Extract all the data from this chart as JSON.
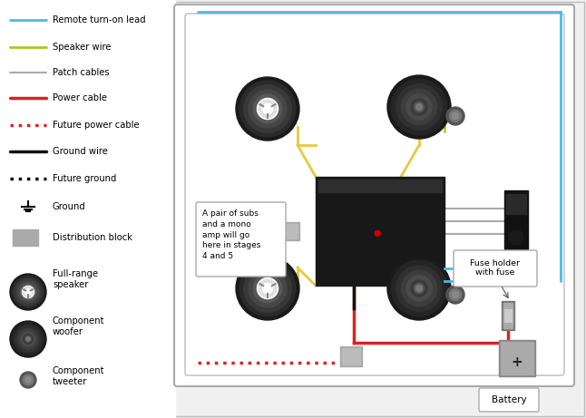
{
  "bg_color": "#f0f0f0",
  "diagram_bg": "#ffffff",
  "blue": "#4db8e8",
  "yellow": "#e8c840",
  "green": "#a8c820",
  "gray_line": "#aaaaaa",
  "red": "#dd2222",
  "black": "#111111",
  "amp_color": "#181818",
  "speaker_outer": "#1a1a1a",
  "dist_block_color": "#aaaaaa",
  "legend_items": [
    {
      "label": "Remote turn-on lead",
      "color": "#4db8e8",
      "style": "solid",
      "lw": 2
    },
    {
      "label": "Speaker wire",
      "color": "#a8c820",
      "style": "solid",
      "lw": 2
    },
    {
      "label": "Patch cables",
      "color": "#aaaaaa",
      "style": "solid",
      "lw": 1.5
    },
    {
      "label": "Power cable",
      "color": "#dd2222",
      "style": "solid",
      "lw": 2.5
    },
    {
      "label": "Future power cable",
      "color": "#dd2222",
      "style": "dotted",
      "lw": 2.5
    },
    {
      "label": "Ground wire",
      "color": "#111111",
      "style": "solid",
      "lw": 2.5
    },
    {
      "label": "Future ground",
      "color": "#111111",
      "style": "dotted",
      "lw": 2.5
    },
    {
      "label": "Ground",
      "color": "#111111",
      "style": "ground",
      "lw": 1.5
    },
    {
      "label": "Distribution block",
      "color": "#aaaaaa",
      "style": "rect",
      "lw": 1
    },
    {
      "label": "Full-range\nspeaker",
      "color": "#1a1a1a",
      "style": "speaker_full",
      "lw": 1
    },
    {
      "label": "Component\nwoofer",
      "color": "#1a1a1a",
      "style": "speaker_woofer",
      "lw": 1
    },
    {
      "label": "Component\ntweeter",
      "color": "#888888",
      "style": "speaker_tweeter",
      "lw": 1
    }
  ],
  "annotation_text": "A pair of subs\nand a mono\namp will go\nhere in stages\n4 and 5",
  "fuse_label": "Fuse holder\nwith fuse",
  "battery_label": "Battery"
}
